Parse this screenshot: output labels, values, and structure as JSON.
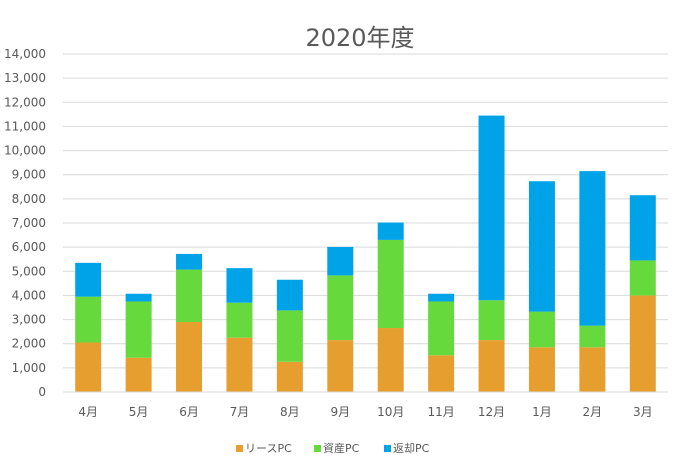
{
  "chart_data": {
    "type": "bar",
    "stacked": true,
    "title": "2020年度",
    "categories": [
      "4月",
      "5月",
      "6月",
      "7月",
      "8月",
      "9月",
      "10月",
      "11月",
      "12月",
      "1月",
      "2月",
      "3月"
    ],
    "series": [
      {
        "name": "リースPC",
        "color": "#E69F2F",
        "values": [
          2050,
          1420,
          2900,
          2250,
          1250,
          2150,
          2650,
          1520,
          2150,
          1850,
          1850,
          4000
        ]
      },
      {
        "name": "資産PC",
        "color": "#66D93D",
        "values": [
          1900,
          2330,
          2170,
          1450,
          2130,
          2680,
          3650,
          2230,
          1650,
          1480,
          900,
          1450
        ]
      },
      {
        "name": "返却PC",
        "color": "#00A2E8",
        "values": [
          1400,
          320,
          650,
          1430,
          1270,
          1180,
          720,
          320,
          7650,
          5400,
          6400,
          2700
        ]
      }
    ],
    "ylim": [
      0,
      14000
    ],
    "ytick_step": 1000,
    "ytick_labels": [
      "0",
      "1,000",
      "2,000",
      "3,000",
      "4,000",
      "5,000",
      "6,000",
      "7,000",
      "8,000",
      "9,000",
      "10,000",
      "11,000",
      "12,000",
      "13,000",
      "14,000"
    ],
    "grid": true,
    "legend_position": "bottom"
  }
}
